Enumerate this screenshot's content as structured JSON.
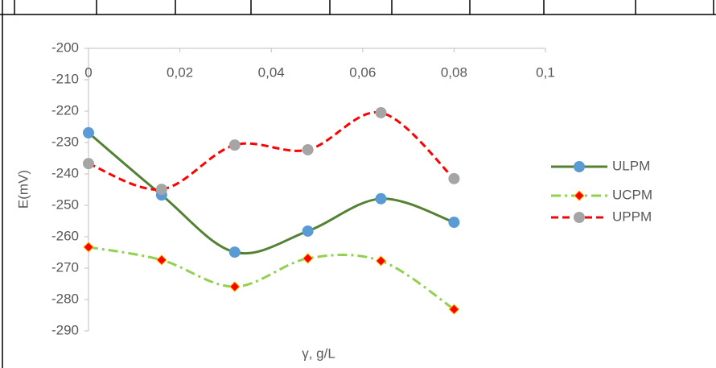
{
  "chart_data": {
    "type": "line",
    "x_label": "γ, g/L",
    "y_label": "E(mV)",
    "x": [
      0,
      0.016,
      0.032,
      0.048,
      0.064,
      0.08
    ],
    "series": [
      {
        "name": "ULPM",
        "color": "#548235",
        "marker_color": "#5b9bd5",
        "marker": "circle",
        "dash": "solid",
        "values": [
          -226.9,
          -246.7,
          -264.9,
          -258.2,
          -247.9,
          -255.4
        ]
      },
      {
        "name": "UCPM",
        "color": "#92d050",
        "marker_color": "#ff0000",
        "marker": "diamond",
        "dash": "dashdot",
        "values": [
          -263.3,
          -267.4,
          -275.9,
          -266.9,
          -267.7,
          -283.1
        ]
      },
      {
        "name": "UPPM",
        "color": "#ff0000",
        "marker_color": "#a5a5a5",
        "marker": "circle",
        "dash": "dashed",
        "values": [
          -236.7,
          -244.9,
          -230.8,
          -232.3,
          -220.5,
          -241.5
        ]
      }
    ],
    "xlim": [
      0,
      0.1
    ],
    "ylim": [
      -290,
      -200
    ],
    "xticks": [
      0,
      {
        "value": 0.02,
        "label": "0,02"
      },
      {
        "value": 0.04,
        "label": "0,04"
      },
      {
        "value": 0.06,
        "label": "0,06"
      },
      {
        "value": 0.08,
        "label": "0,08"
      },
      {
        "value": 0.1,
        "label": "0,1"
      }
    ],
    "yticks": [
      -290,
      -280,
      -270,
      -260,
      -250,
      -240,
      -230,
      -220,
      -210,
      -200
    ],
    "legend": "right"
  }
}
